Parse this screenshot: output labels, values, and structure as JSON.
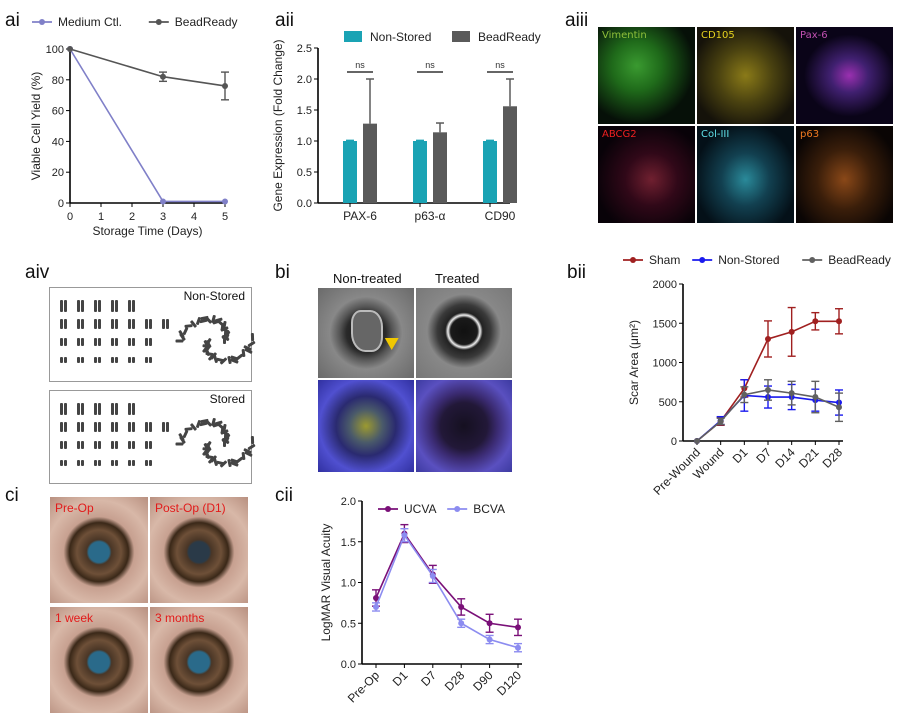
{
  "panel_labels": {
    "ai": "ai",
    "aii": "aii",
    "aiii": "aiii",
    "aiv": "aiv",
    "bi": "bi",
    "bii": "bii",
    "ci": "ci",
    "cii": "cii"
  },
  "aiii": {
    "stains": [
      {
        "label": "Vimentin",
        "color": "#8fbf3a"
      },
      {
        "label": "CD105",
        "color": "#e6d21e"
      },
      {
        "label": "Pax-6",
        "color": "#c050b0"
      },
      {
        "label": "ABCG2",
        "color": "#ee2020"
      },
      {
        "label": "Col-III",
        "color": "#5fe0e8"
      },
      {
        "label": "p63",
        "color": "#f07a20"
      }
    ]
  },
  "aiv": {
    "top_label": "Non-Stored",
    "bottom_label": "Stored"
  },
  "bi": {
    "col1": "Non-treated",
    "col2": "Treated"
  },
  "ci": {
    "images": [
      "Pre-Op",
      "Post-Op (D1)",
      "1 week",
      "3 months"
    ]
  },
  "chart_data": [
    {
      "id": "ai",
      "type": "line",
      "xlabel": "Storage Time (Days)",
      "ylabel": "Viable Cell Yield (%)",
      "xlim": [
        0,
        5
      ],
      "ylim": [
        0,
        100
      ],
      "xticks": [
        "0",
        "1",
        "2",
        "3",
        "4",
        "5"
      ],
      "yticks": [
        "0",
        "20",
        "40",
        "60",
        "80",
        "100"
      ],
      "legend": "top",
      "series": [
        {
          "name": "Medium Ctl.",
          "color": "#8080c8",
          "x": [
            0,
            3,
            5
          ],
          "y": [
            100,
            1,
            1
          ],
          "err": [
            0,
            0,
            0
          ]
        },
        {
          "name": "BeadReady",
          "color": "#555555",
          "x": [
            0,
            3,
            5
          ],
          "y": [
            100,
            82,
            76
          ],
          "err": [
            0,
            3,
            9
          ]
        }
      ]
    },
    {
      "id": "aii",
      "type": "bar",
      "ylabel": "Gene Expression (Fold Change)",
      "ylim": [
        0,
        2.5
      ],
      "yticks": [
        "0.0",
        "0.5",
        "1.0",
        "1.5",
        "2.0",
        "2.5"
      ],
      "categories": [
        "PAX-6",
        "p63-α",
        "CD90"
      ],
      "legend": "top",
      "annotations": [
        "ns",
        "ns",
        "ns"
      ],
      "series": [
        {
          "name": "Non-Stored",
          "color": "#1aa3b4",
          "values": [
            1.0,
            1.0,
            1.0
          ],
          "err": [
            0.01,
            0.01,
            0.01
          ]
        },
        {
          "name": "BeadReady",
          "color": "#5a5a5a",
          "values": [
            1.28,
            1.14,
            1.56
          ],
          "err": [
            0.72,
            0.15,
            0.44
          ]
        }
      ]
    },
    {
      "id": "bii",
      "type": "line",
      "ylabel": "Scar Area (μm²)",
      "ylim": [
        0,
        2000
      ],
      "yticks": [
        "0",
        "500",
        "1000",
        "1500",
        "2000"
      ],
      "categories": [
        "Pre-Wound",
        "Wound",
        "D1",
        "D7",
        "D14",
        "D21",
        "D28"
      ],
      "legend": "top",
      "series": [
        {
          "name": "Sham",
          "color": "#a02020",
          "y": [
            0,
            250,
            670,
            1300,
            1390,
            1525,
            1525
          ],
          "err": [
            0,
            50,
            110,
            230,
            310,
            110,
            160
          ]
        },
        {
          "name": "Non-Stored",
          "color": "#1a1aee",
          "y": [
            0,
            260,
            580,
            560,
            560,
            520,
            490
          ],
          "err": [
            0,
            50,
            200,
            140,
            160,
            140,
            160
          ]
        },
        {
          "name": "BeadReady",
          "color": "#606060",
          "y": [
            0,
            250,
            590,
            650,
            610,
            560,
            430
          ],
          "err": [
            0,
            40,
            100,
            130,
            150,
            200,
            180
          ]
        }
      ]
    },
    {
      "id": "cii",
      "type": "line",
      "ylabel": "LogMAR Visual Acuity",
      "ylim": [
        0,
        2.0
      ],
      "yticks": [
        "0.0",
        "0.5",
        "1.0",
        "1.5",
        "2.0"
      ],
      "categories": [
        "Pre-Op",
        "D1",
        "D7",
        "D28",
        "D90",
        "D120"
      ],
      "legend": "top-right",
      "series": [
        {
          "name": "UCVA",
          "color": "#7a1078",
          "y": [
            0.81,
            1.6,
            1.1,
            0.7,
            0.5,
            0.45
          ],
          "err": [
            0.1,
            0.11,
            0.11,
            0.1,
            0.11,
            0.1
          ]
        },
        {
          "name": "BCVA",
          "color": "#8c8cf0",
          "y": [
            0.7,
            1.58,
            1.08,
            0.5,
            0.3,
            0.2
          ],
          "err": [
            0.05,
            0.08,
            0.08,
            0.05,
            0.05,
            0.05
          ]
        }
      ]
    }
  ]
}
